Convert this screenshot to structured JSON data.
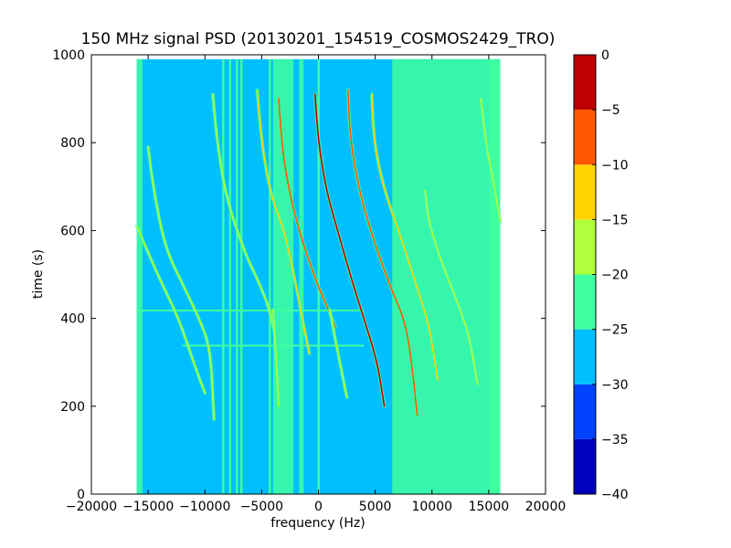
{
  "chart_data": {
    "type": "heatmap",
    "title": "150 MHz signal PSD (20130201_154519_COSMOS2429_TRO)",
    "xlabel": "frequency (Hz)",
    "ylabel": "time (s)",
    "xlim": [
      -20000,
      20000
    ],
    "ylim": [
      0,
      1000
    ],
    "xticks": [
      -20000,
      -15000,
      -10000,
      -5000,
      0,
      5000,
      10000,
      15000,
      20000
    ],
    "yticks": [
      0,
      200,
      400,
      600,
      800,
      1000
    ],
    "xtick_labels": [
      "−20000",
      "−15000",
      "−10000",
      "−5000",
      "0",
      "5000",
      "10000",
      "15000",
      "20000"
    ],
    "ytick_labels": [
      "0",
      "200",
      "400",
      "600",
      "800",
      "1000"
    ],
    "data_extent": {
      "freq_hz": [
        -16000,
        16000
      ],
      "time_s": [
        0,
        990
      ]
    },
    "colorbar": {
      "levels": [
        -40,
        -35,
        -30,
        -25,
        -20,
        -15,
        -10,
        -5,
        0
      ],
      "tick_labels": [
        "−40",
        "−35",
        "−30",
        "−25",
        "−20",
        "−15",
        "−10",
        "−5",
        "0"
      ],
      "colors": [
        "#0000bf",
        "#0042ff",
        "#00bfff",
        "#40ff9f",
        "#b2ff3c",
        "#ffd200",
        "#ff5800",
        "#bf0000"
      ],
      "background_level_db": -27
    },
    "background_bands": [
      {
        "freq_from": -16000,
        "freq_to": -15500,
        "level_db": -22
      },
      {
        "freq_from": -4000,
        "freq_to": -2200,
        "level_db": -22
      },
      {
        "freq_from": -1700,
        "freq_to": -1300,
        "level_db": -22
      },
      {
        "freq_from": 6500,
        "freq_to": 16000,
        "level_db": -23
      },
      {
        "freq_from": 15000,
        "freq_to": 16000,
        "level_db": -22
      }
    ],
    "vertical_lines": [
      {
        "freq": -8400,
        "level_db": -22
      },
      {
        "freq": -7800,
        "level_db": -22
      },
      {
        "freq": -7200,
        "level_db": -22
      },
      {
        "freq": -6800,
        "level_db": -22
      },
      {
        "freq": -4300,
        "level_db": -22
      },
      {
        "freq": 0,
        "level_db": -22
      },
      {
        "freq": 15300,
        "level_db": -22
      }
    ],
    "horizontal_lines": [
      {
        "time": 418,
        "freq_from": -16000,
        "freq_to": 4000,
        "level_db": -22
      },
      {
        "time": 338,
        "freq_from": -12000,
        "freq_to": 4000,
        "level_db": -22
      }
    ],
    "series": [
      {
        "points": [
          [
            -16000,
            610
          ],
          [
            -14000,
            490
          ],
          [
            -12300,
            400
          ],
          [
            -11000,
            300
          ],
          [
            -10000,
            230
          ]
        ],
        "level_db": -20
      },
      {
        "points": [
          [
            -15000,
            790
          ],
          [
            -14500,
            690
          ],
          [
            -13500,
            560
          ],
          [
            -12000,
            480
          ],
          [
            -10500,
            400
          ],
          [
            -9500,
            330
          ],
          [
            -9200,
            170
          ]
        ],
        "level_db": -20
      },
      {
        "points": [
          [
            -9300,
            910
          ],
          [
            -9000,
            820
          ],
          [
            -8200,
            680
          ],
          [
            -6500,
            550
          ],
          [
            -5200,
            480
          ],
          [
            -4300,
            420
          ],
          [
            -3900,
            370
          ]
        ],
        "level_db": -20
      },
      {
        "points": [
          [
            -5400,
            920
          ],
          [
            -5000,
            800
          ],
          [
            -4200,
            680
          ],
          [
            -3000,
            600
          ],
          [
            -2000,
            480
          ],
          [
            -1200,
            370
          ],
          [
            -800,
            320
          ]
        ],
        "level_db": -15
      },
      {
        "points": [
          [
            -3500,
            900
          ],
          [
            -3200,
            790
          ],
          [
            -2600,
            690
          ],
          [
            -1600,
            590
          ],
          [
            -300,
            490
          ],
          [
            700,
            430
          ],
          [
            1500,
            380
          ]
        ],
        "level_db": -10
      },
      {
        "points": [
          [
            -300,
            910
          ],
          [
            0,
            800
          ],
          [
            700,
            690
          ],
          [
            1800,
            590
          ],
          [
            2900,
            490
          ],
          [
            4000,
            400
          ],
          [
            5200,
            300
          ],
          [
            5800,
            200
          ]
        ],
        "level_db": -5
      },
      {
        "points": [
          [
            2600,
            920
          ],
          [
            2800,
            810
          ],
          [
            3500,
            700
          ],
          [
            4700,
            590
          ],
          [
            6200,
            480
          ],
          [
            7700,
            390
          ],
          [
            8300,
            280
          ],
          [
            8700,
            180
          ]
        ],
        "level_db": -10
      },
      {
        "points": [
          [
            4700,
            910
          ],
          [
            4900,
            800
          ],
          [
            5700,
            700
          ],
          [
            7200,
            590
          ],
          [
            8700,
            470
          ],
          [
            9800,
            380
          ],
          [
            10500,
            260
          ]
        ],
        "level_db": -15
      },
      {
        "points": [
          [
            9400,
            690
          ],
          [
            9700,
            620
          ],
          [
            10800,
            530
          ],
          [
            12200,
            440
          ],
          [
            13300,
            360
          ],
          [
            14000,
            250
          ]
        ],
        "level_db": -20
      },
      {
        "points": [
          [
            14300,
            900
          ],
          [
            14800,
            790
          ],
          [
            15500,
            700
          ],
          [
            16000,
            620
          ]
        ],
        "level_db": -20
      },
      {
        "points": [
          [
            -4000,
            420
          ],
          [
            -3700,
            300
          ],
          [
            -3500,
            200
          ]
        ],
        "level_db": -20
      },
      {
        "points": [
          [
            1000,
            420
          ],
          [
            1500,
            350
          ],
          [
            2500,
            220
          ]
        ],
        "level_db": -20
      }
    ]
  }
}
